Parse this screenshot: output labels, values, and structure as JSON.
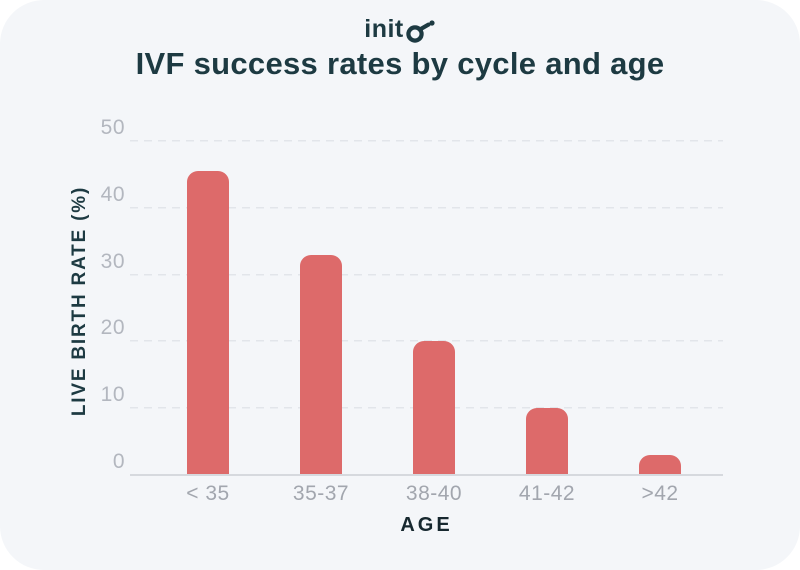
{
  "page": {
    "background": "#ffffff",
    "card_background": "#f4f6f9"
  },
  "logo": {
    "brand": "inito",
    "text_prefix": "init",
    "mark": "o-with-pointer-dot",
    "color": "#1d3a42"
  },
  "header": {
    "title": "IVF success rates by cycle and age"
  },
  "chart_data": {
    "type": "bar",
    "title": "IVF success rates by cycle and age",
    "categories": [
      "< 35",
      "35-37",
      "38-40",
      "41-42",
      ">42"
    ],
    "values": [
      45.5,
      33,
      20,
      10,
      3
    ],
    "xlabel": "AGE",
    "ylabel": "LIVE BIRTH RATE (%)",
    "ylim": [
      0,
      50
    ],
    "yticks": [
      50,
      40,
      30,
      20,
      10,
      0
    ],
    "grid": "dashed-horizontal",
    "legend_position": "none",
    "bar_color": "#dd6a6a",
    "gridline_color": "#e2e5ea",
    "axis_line_color": "#d6d9de",
    "tick_label_color": "#b3b7bf",
    "category_label_color": "#a2a6ae",
    "text_color": "#1d3a42"
  }
}
